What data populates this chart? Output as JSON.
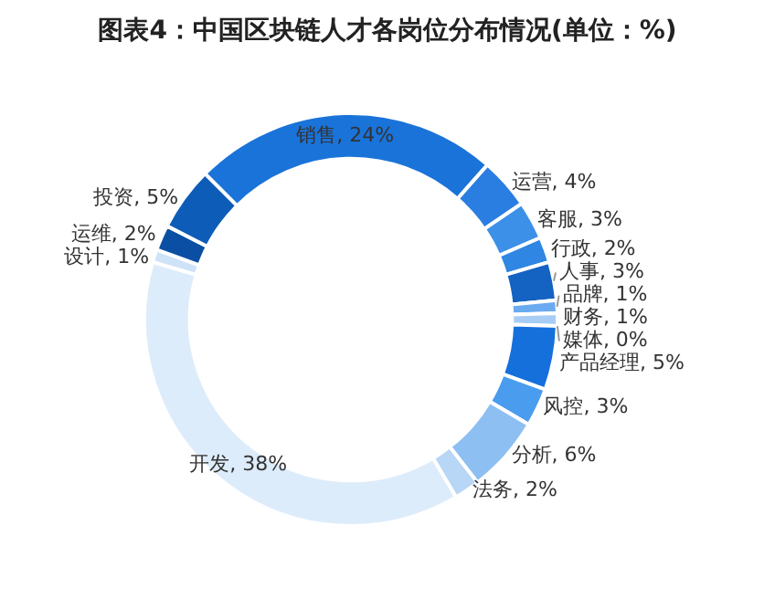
{
  "chart_data": {
    "type": "donut",
    "title": "图表4：中国区块链人才各岗位分布情况(单位：%)",
    "categories": [
      "销售",
      "运营",
      "客服",
      "行政",
      "人事",
      "品牌",
      "财务",
      "媒体",
      "产品经理",
      "风控",
      "分析",
      "法务",
      "开发",
      "设计",
      "运维",
      "投资"
    ],
    "values": [
      24,
      4,
      3,
      2,
      3,
      1,
      1,
      0,
      5,
      3,
      6,
      2,
      38,
      1,
      2,
      5
    ],
    "colors": [
      "#1a73d9",
      "#2a7de1",
      "#3c90e8",
      "#2f86e3",
      "#1462c2",
      "#6aaaf0",
      "#a8cdf5",
      "#c7dff8",
      "#1570db",
      "#4a9cee",
      "#8dbff2",
      "#b8d6f5",
      "#ddecfb",
      "#cfe3f8",
      "#0a4fa3",
      "#0d5cb8"
    ],
    "data_labels": true,
    "value_labels": [
      ", 24%",
      ", 4%",
      ", 3%",
      ", 2%",
      ", 3%",
      ", 1%",
      ", 1%",
      ", 0%",
      ", 5%",
      ", 3%",
      ", 6%",
      ", 2%",
      ", 38%",
      ", 1%",
      ", 2%",
      ", 5%"
    ]
  }
}
